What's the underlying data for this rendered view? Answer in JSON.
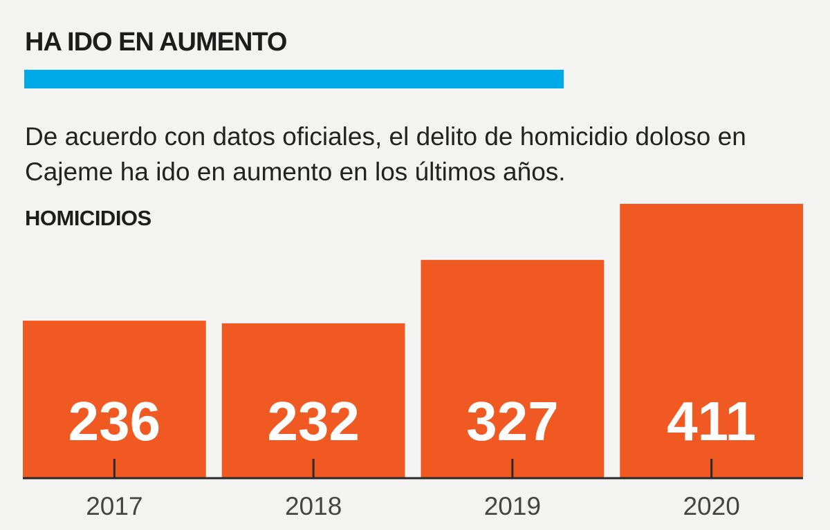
{
  "header": {
    "title": "HA IDO EN AUMENTO",
    "description": "De acuerdo con datos oficiales, el delito de homicidio doloso en Cajeme ha ido en aumento en los últimos años."
  },
  "colors": {
    "accent_rule": "#00a9e8",
    "bar": "#f05a22",
    "bar_label": "#ffffff",
    "background": "#f3f3f1"
  },
  "chart_data": {
    "type": "bar",
    "title": "HOMICIDIOS",
    "categories": [
      "2017",
      "2018",
      "2019",
      "2020"
    ],
    "values": [
      236,
      232,
      327,
      411
    ],
    "xlabel": "",
    "ylabel": "",
    "ylim": [
      0,
      411
    ],
    "data_labels": true,
    "grid": false,
    "legend": "none"
  }
}
